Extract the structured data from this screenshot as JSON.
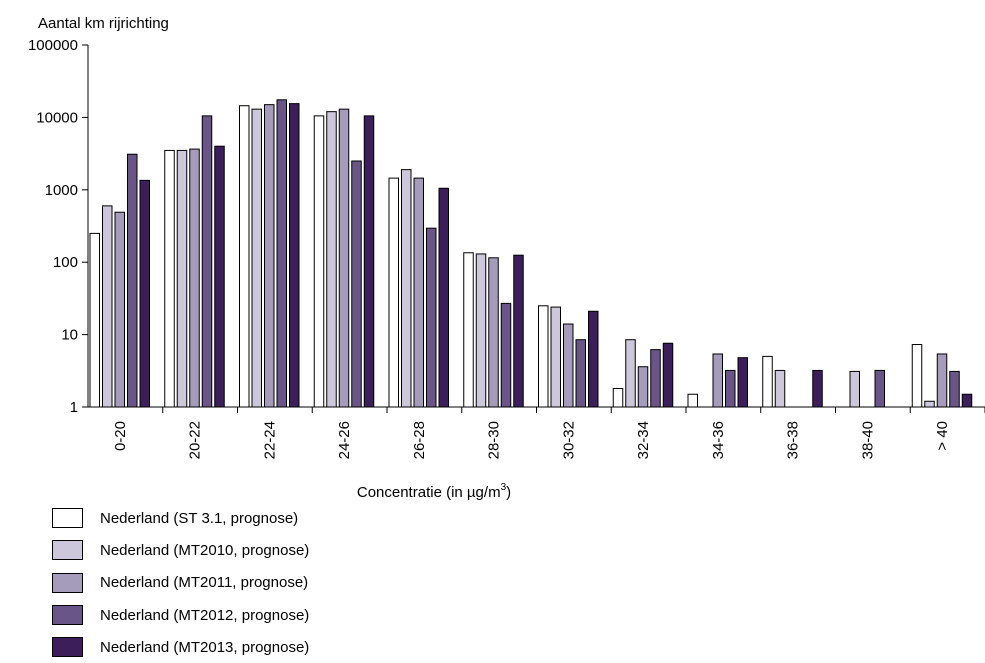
{
  "chart_data": {
    "type": "bar",
    "ylabel": "Aantal km rijrichting",
    "xlabel": "Concentratie (in µg/m³)",
    "y_scale": "log",
    "ylim": [
      1,
      100000
    ],
    "y_ticks": [
      "100000",
      "10000",
      "1000",
      "100",
      "10",
      "1"
    ],
    "categories": [
      "0-20",
      "20-22",
      "22-24",
      "24-26",
      "26-28",
      "28-30",
      "30-32",
      "32-34",
      "34-36",
      "36-38",
      "38-40",
      "> 40"
    ],
    "series": [
      {
        "name": "Nederland (ST 3.1, prognose)",
        "color": "#ffffff",
        "values": [
          250,
          3500,
          14500,
          10500,
          1450,
          135,
          25,
          1.8,
          1.5,
          5,
          1,
          7.3
        ]
      },
      {
        "name": "Nederland (MT2010, prognose)",
        "color": "#cdc7dc",
        "values": [
          600,
          3500,
          13000,
          12000,
          1900,
          130,
          24,
          8.5,
          1,
          3.2,
          3.1,
          1.2
        ]
      },
      {
        "name": "Nederland (MT2011, prognose)",
        "color": "#a59bbb",
        "values": [
          490,
          3650,
          15000,
          13000,
          1450,
          115,
          14,
          3.6,
          5.4,
          1,
          1,
          5.4
        ]
      },
      {
        "name": "Nederland (MT2012, prognose)",
        "color": "#6a5588",
        "values": [
          3100,
          10500,
          17500,
          2500,
          295,
          27,
          8.5,
          6.2,
          3.2,
          1,
          3.2,
          3.1
        ]
      },
      {
        "name": "Nederland (MT2013, prognose)",
        "color": "#3b1e5a",
        "values": [
          1350,
          4000,
          15500,
          10500,
          1050,
          125,
          21,
          7.6,
          4.8,
          3.2,
          1,
          1.5
        ]
      }
    ]
  }
}
